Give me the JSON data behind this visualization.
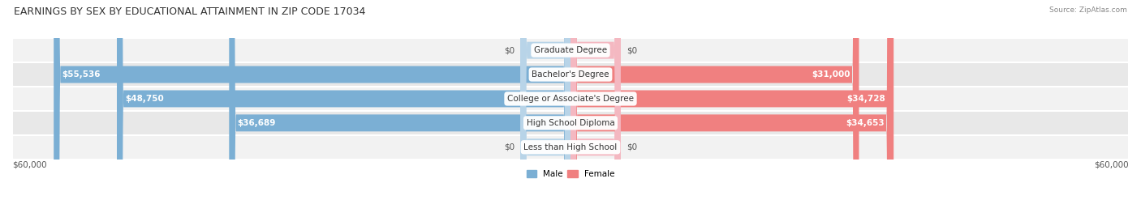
{
  "title": "EARNINGS BY SEX BY EDUCATIONAL ATTAINMENT IN ZIP CODE 17034",
  "source": "Source: ZipAtlas.com",
  "categories": [
    "Less than High School",
    "High School Diploma",
    "College or Associate's Degree",
    "Bachelor's Degree",
    "Graduate Degree"
  ],
  "male_values": [
    0,
    36689,
    48750,
    55536,
    0
  ],
  "female_values": [
    0,
    34653,
    34728,
    31000,
    0
  ],
  "male_labels": [
    "$0",
    "$36,689",
    "$48,750",
    "$55,536",
    "$0"
  ],
  "female_labels": [
    "$0",
    "$34,653",
    "$34,728",
    "$31,000",
    "$0"
  ],
  "male_color": "#7bafd4",
  "female_color": "#f08080",
  "male_color_light": "#b8d4e8",
  "female_color_light": "#f4b8c1",
  "row_bg_colors": [
    "#f2f2f2",
    "#e8e8e8"
  ],
  "max_value": 60000,
  "axis_label_left": "$60,000",
  "axis_label_right": "$60,000",
  "legend_male": "Male",
  "legend_female": "Female",
  "background_color": "#ffffff",
  "title_fontsize": 9,
  "label_fontsize": 7.5,
  "category_fontsize": 7.5,
  "axis_fontsize": 7.5
}
